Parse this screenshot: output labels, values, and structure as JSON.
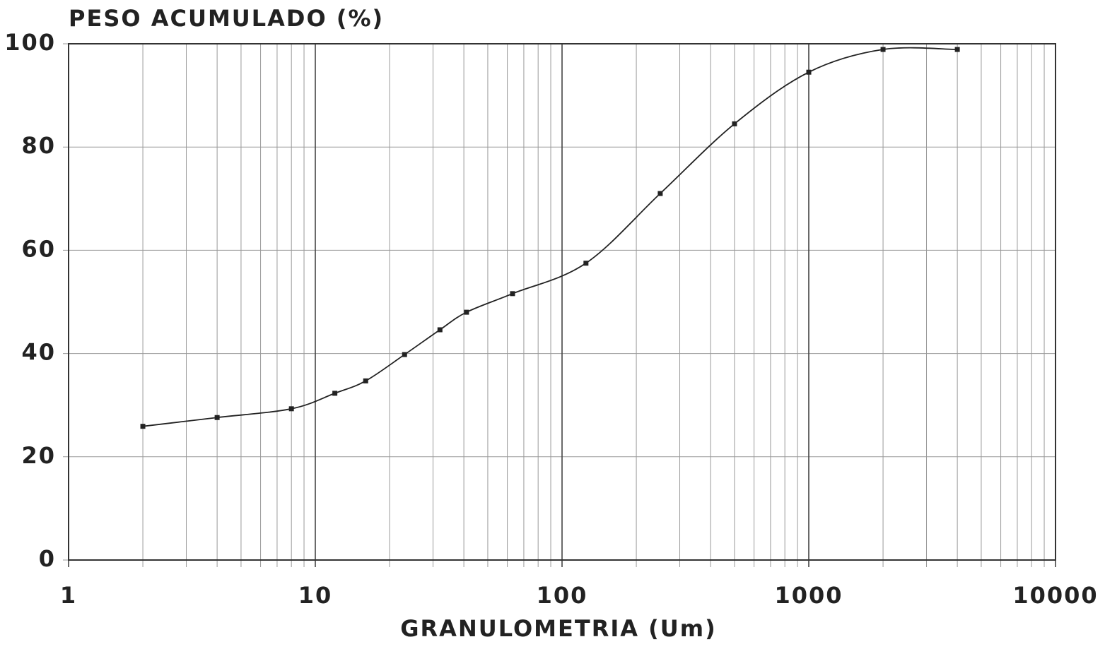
{
  "chart_data": {
    "type": "scatter-line",
    "y_label": "PESO ACUMULADO (%)",
    "x_label": "GRANULOMETRIA (Um)",
    "x_log": true,
    "grid": true,
    "xlim": [
      1,
      10000
    ],
    "ylim": [
      0,
      100
    ],
    "xticks": [
      1,
      10,
      100,
      1000,
      10000
    ],
    "xminorticks": [
      2,
      3,
      4,
      5,
      6,
      7,
      8,
      9,
      20,
      30,
      40,
      50,
      60,
      70,
      80,
      90,
      200,
      300,
      400,
      500,
      600,
      700,
      800,
      900,
      2000,
      3000,
      4000,
      5000,
      6000,
      7000,
      8000,
      9000
    ],
    "yticks": [
      0,
      20,
      40,
      60,
      80,
      100
    ],
    "color": "#222222",
    "x": [
      2,
      4,
      8,
      12,
      16,
      23,
      32,
      41,
      63,
      125,
      250,
      500,
      1000,
      2000,
      4000
    ],
    "values": [
      25.9,
      27.6,
      29.3,
      32.3,
      34.7,
      39.8,
      44.6,
      48.0,
      51.6,
      57.5,
      71.0,
      84.5,
      94.5,
      98.9,
      98.9
    ]
  }
}
